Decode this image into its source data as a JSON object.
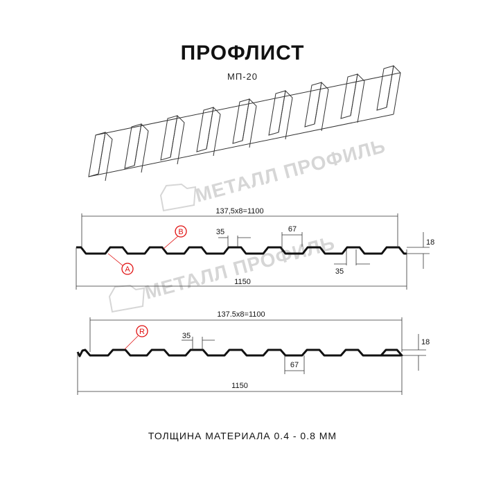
{
  "title": "ПРОФЛИСТ",
  "subtitle": "МП-20",
  "footer": "ТОЛЩИНА МАТЕРИАЛА 0.4 - 0.8 ММ",
  "watermark": "МЕТАЛЛ ПРОФИЛЬ",
  "colors": {
    "line": "#111111",
    "marker": "#e01010",
    "watermark": "#d6d6d6"
  },
  "profile1": {
    "pitch_label": "137,5x8=1100",
    "width_label": "1150",
    "height_label": "18",
    "crest_top_label": "35",
    "crest_bottom_label": "35",
    "valley_label": "67",
    "markers": [
      "B",
      "A"
    ]
  },
  "profile2": {
    "pitch_label": "137.5x8=1100",
    "width_label": "1150",
    "height_label": "18",
    "crest_top_label": "35",
    "valley_label": "67",
    "markers": [
      "R"
    ]
  }
}
